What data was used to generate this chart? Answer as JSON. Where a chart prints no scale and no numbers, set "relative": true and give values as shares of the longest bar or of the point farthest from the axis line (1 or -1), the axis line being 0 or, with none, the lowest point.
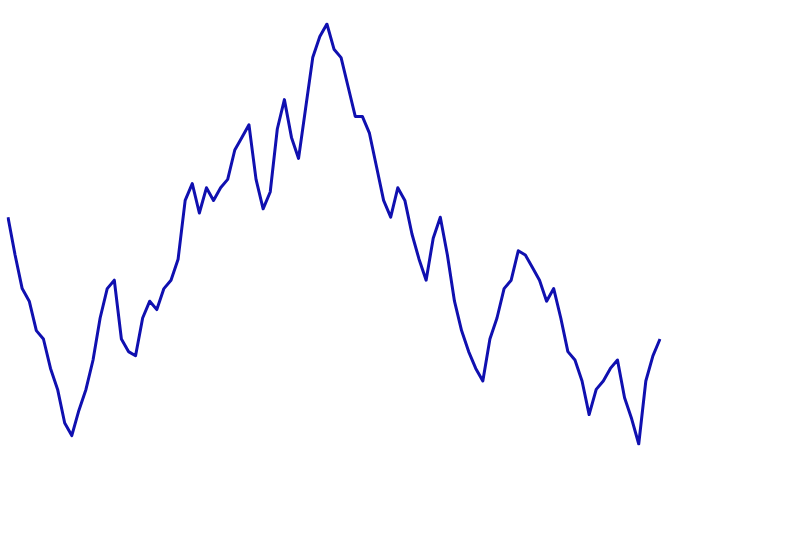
{
  "chart_data": {
    "type": "line",
    "relative": true,
    "color": "#1010b0",
    "marker": "none",
    "line_style": "solid",
    "categories": [
      null,
      null,
      null,
      null,
      null,
      null,
      null,
      null,
      null,
      null,
      null,
      null,
      null,
      null,
      null,
      null,
      null,
      null,
      null,
      null,
      null,
      null,
      null,
      null,
      null,
      null,
      null,
      null,
      null,
      null,
      null,
      null,
      null,
      null,
      null,
      null,
      null,
      null,
      null,
      null,
      null,
      null,
      null,
      null,
      null,
      null,
      null,
      null,
      null,
      null,
      null,
      null,
      null,
      null,
      null,
      null,
      null,
      null,
      null,
      null,
      null,
      null,
      null,
      null,
      null,
      null,
      null,
      null,
      null,
      null,
      null,
      null,
      null,
      null,
      null,
      null,
      null,
      null,
      null,
      null,
      null,
      null,
      null,
      null,
      null,
      null,
      null,
      null,
      null,
      null,
      null,
      null,
      null
    ],
    "values": [
      0.54,
      0.45,
      0.37,
      0.34,
      0.27,
      0.25,
      0.18,
      0.13,
      0.05,
      0.02,
      0.08,
      0.13,
      0.2,
      0.3,
      0.37,
      0.39,
      0.25,
      0.22,
      0.21,
      0.3,
      0.34,
      0.32,
      0.37,
      0.39,
      0.44,
      0.58,
      0.62,
      0.55,
      0.61,
      0.58,
      0.61,
      0.63,
      0.7,
      0.73,
      0.76,
      0.63,
      0.56,
      0.6,
      0.75,
      0.82,
      0.73,
      0.68,
      0.8,
      0.92,
      0.97,
      1,
      0.94,
      0.92,
      0.85,
      0.78,
      0.78,
      0.74,
      0.66,
      0.58,
      0.54,
      0.61,
      0.58,
      0.5,
      0.44,
      0.39,
      0.49,
      0.54,
      0.45,
      0.34,
      0.27,
      0.22,
      0.18,
      0.15,
      0.25,
      0.3,
      0.37,
      0.39,
      0.46,
      0.45,
      0.42,
      0.39,
      0.34,
      0.37,
      0.3,
      0.22,
      0.2,
      0.15,
      0.07,
      0.13,
      0.15,
      0.18,
      0.2,
      0.11,
      0.06,
      0,
      0.15,
      0.21,
      0.25
    ]
  }
}
